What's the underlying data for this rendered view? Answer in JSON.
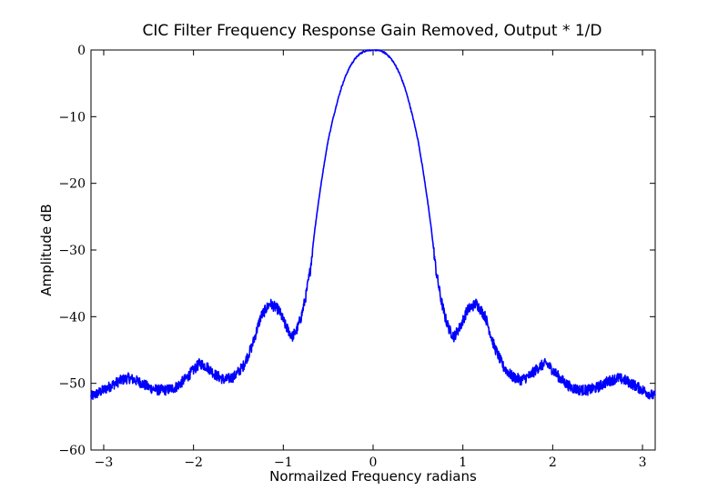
{
  "chart_data": {
    "type": "line",
    "title": "CIC Filter Frequency Response Gain Removed, Output * 1/D",
    "xlabel": "Normailzed Frequency radians",
    "ylabel": "Amplitude dB",
    "xlim": [
      -3.1416,
      3.1416
    ],
    "ylim": [
      -60,
      0
    ],
    "grid": false,
    "x_ticks": [
      -3,
      -2,
      -1,
      0,
      1,
      2,
      3
    ],
    "x_tick_labels": [
      "−3",
      "−2",
      "−1",
      "0",
      "1",
      "2",
      "3"
    ],
    "y_ticks": [
      0,
      -10,
      -20,
      -30,
      -40,
      -50,
      -60
    ],
    "y_tick_labels": [
      "0",
      "−10",
      "−20",
      "−30",
      "−40",
      "−50",
      "−60"
    ],
    "series": [
      {
        "color": "#0000ff",
        "noise_amplitude_db": 0.8,
        "x": [
          -3.14,
          -3.0,
          -2.9,
          -2.8,
          -2.72,
          -2.6,
          -2.5,
          -2.4,
          -2.3,
          -2.2,
          -2.1,
          -2.0,
          -1.93,
          -1.85,
          -1.75,
          -1.65,
          -1.55,
          -1.45,
          -1.35,
          -1.25,
          -1.15,
          -1.05,
          -0.97,
          -0.9,
          -0.85,
          -0.8,
          -0.75,
          -0.7,
          -0.65,
          -0.6,
          -0.55,
          -0.5,
          -0.45,
          -0.4,
          -0.35,
          -0.3,
          -0.25,
          -0.2,
          -0.15,
          -0.1,
          -0.05,
          0.0,
          0.05,
          0.1,
          0.15,
          0.2,
          0.25,
          0.3,
          0.35,
          0.4,
          0.45,
          0.5,
          0.55,
          0.6,
          0.65,
          0.7,
          0.75,
          0.8,
          0.85,
          0.9,
          0.97,
          1.05,
          1.15,
          1.25,
          1.35,
          1.45,
          1.55,
          1.65,
          1.75,
          1.85,
          1.93,
          2.0,
          2.1,
          2.2,
          2.3,
          2.4,
          2.5,
          2.6,
          2.72,
          2.8,
          2.9,
          3.0,
          3.14
        ],
        "y": [
          -52,
          -51,
          -50.2,
          -49.5,
          -49.2,
          -49.8,
          -50.6,
          -51,
          -51,
          -50.6,
          -49.5,
          -48,
          -47,
          -47.5,
          -48.8,
          -49.5,
          -49,
          -47.5,
          -44.5,
          -40,
          -38,
          -39,
          -41.5,
          -43,
          -42,
          -40,
          -37,
          -33,
          -27,
          -22,
          -17.5,
          -13.5,
          -10.5,
          -7.8,
          -5.5,
          -3.7,
          -2.3,
          -1.3,
          -0.6,
          -0.2,
          0,
          0,
          0,
          -0.2,
          -0.6,
          -1.3,
          -2.3,
          -3.7,
          -5.5,
          -7.8,
          -10.5,
          -13.5,
          -17.5,
          -22,
          -27,
          -33,
          -37,
          -40,
          -42,
          -43,
          -41.5,
          -39,
          -38,
          -40,
          -44.5,
          -47.5,
          -49,
          -49.5,
          -48.8,
          -47.5,
          -47,
          -48,
          -49.5,
          -50.6,
          -51,
          -51,
          -50.6,
          -49.8,
          -49.2,
          -49.5,
          -50.2,
          -51,
          -52
        ]
      }
    ]
  }
}
